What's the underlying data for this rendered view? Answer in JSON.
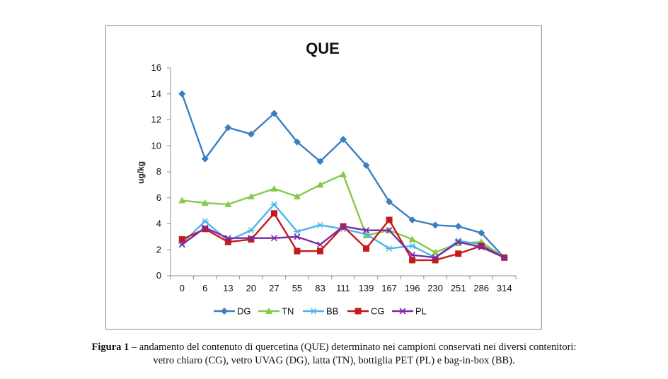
{
  "chart_data": {
    "type": "line",
    "title": "QUE",
    "xlabel": "",
    "ylabel": "ug/kg",
    "ylim": [
      0,
      16
    ],
    "yticks": [
      0,
      2,
      4,
      6,
      8,
      10,
      12,
      14,
      16
    ],
    "categories": [
      "0",
      "6",
      "13",
      "20",
      "27",
      "55",
      "83",
      "111",
      "139",
      "167",
      "196",
      "230",
      "251",
      "286",
      "314"
    ],
    "legend_position": "bottom",
    "series": [
      {
        "name": "DG",
        "color": "#3a7fc1",
        "marker": "diamond",
        "values": [
          14.0,
          9.0,
          11.4,
          10.9,
          12.5,
          10.3,
          8.8,
          10.5,
          8.5,
          5.7,
          4.3,
          3.9,
          3.8,
          3.3,
          1.4
        ]
      },
      {
        "name": "TN",
        "color": "#86c94a",
        "marker": "triangle",
        "values": [
          5.8,
          5.6,
          5.5,
          6.1,
          6.7,
          6.1,
          7.0,
          7.8,
          3.1,
          3.5,
          2.8,
          1.8,
          2.5,
          2.6,
          1.4
        ]
      },
      {
        "name": "BB",
        "color": "#4ab6e8",
        "marker": "asterisk",
        "values": [
          2.5,
          4.2,
          2.7,
          3.5,
          5.5,
          3.4,
          3.9,
          3.6,
          3.2,
          2.1,
          2.3,
          1.4,
          2.7,
          2.4,
          1.4
        ]
      },
      {
        "name": "CG",
        "color": "#c41a1a",
        "marker": "square",
        "values": [
          2.8,
          3.6,
          2.6,
          2.8,
          4.8,
          1.9,
          1.9,
          3.8,
          2.1,
          4.3,
          1.2,
          1.2,
          1.7,
          2.3,
          1.4
        ]
      },
      {
        "name": "PL",
        "color": "#7a2aa8",
        "marker": "x",
        "values": [
          2.4,
          3.7,
          2.9,
          2.9,
          2.9,
          3.0,
          2.4,
          3.8,
          3.5,
          3.5,
          1.6,
          1.4,
          2.6,
          2.2,
          1.4
        ]
      }
    ]
  },
  "caption": {
    "label": "Figura 1",
    "line1": " – andamento del contenuto di quercetina (QUE) determinato nei campioni conservati nei diversi contenitori:",
    "line2": "vetro chiaro (CG), vetro UVAG (DG), latta (TN), bottiglia PET (PL) e bag-in-box (BB)."
  }
}
